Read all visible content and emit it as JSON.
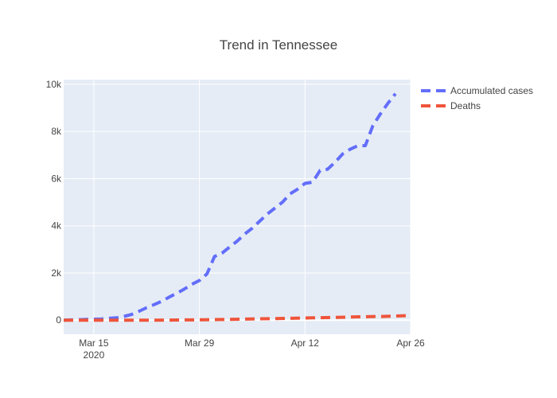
{
  "chart_data": {
    "type": "line",
    "title": "Trend in Tennessee",
    "xlabel": "",
    "ylabel": "",
    "x_axis": {
      "range": [
        "2020-03-11",
        "2020-04-26"
      ],
      "ticks": [
        {
          "date": "2020-03-15",
          "label": "Mar 15",
          "sublabel": "2020"
        },
        {
          "date": "2020-03-29",
          "label": "Mar 29",
          "sublabel": ""
        },
        {
          "date": "2020-04-12",
          "label": "Apr 12",
          "sublabel": ""
        },
        {
          "date": "2020-04-26",
          "label": "Apr 26",
          "sublabel": ""
        }
      ]
    },
    "y_axis": {
      "range": [
        -600,
        10200
      ],
      "ticks": [
        {
          "value": 0,
          "label": "0"
        },
        {
          "value": 2000,
          "label": "2k"
        },
        {
          "value": 4000,
          "label": "4k"
        },
        {
          "value": 6000,
          "label": "6k"
        },
        {
          "value": 8000,
          "label": "8k"
        },
        {
          "value": 10000,
          "label": "10k"
        }
      ]
    },
    "grid": true,
    "legend_position": "top-right",
    "series": [
      {
        "name": "Accumulated cases",
        "color": "#636efa",
        "dash": "dash",
        "points": [
          [
            "2020-03-11",
            0
          ],
          [
            "2020-03-12",
            10
          ],
          [
            "2020-03-13",
            20
          ],
          [
            "2020-03-14",
            30
          ],
          [
            "2020-03-15",
            40
          ],
          [
            "2020-03-16",
            50
          ],
          [
            "2020-03-17",
            80
          ],
          [
            "2020-03-18",
            100
          ],
          [
            "2020-03-19",
            160
          ],
          [
            "2020-03-20",
            240
          ],
          [
            "2020-03-21",
            380
          ],
          [
            "2020-03-22",
            530
          ],
          [
            "2020-03-23",
            660
          ],
          [
            "2020-03-24",
            800
          ],
          [
            "2020-03-25",
            980
          ],
          [
            "2020-03-26",
            1140
          ],
          [
            "2020-03-27",
            1320
          ],
          [
            "2020-03-28",
            1520
          ],
          [
            "2020-03-29",
            1680
          ],
          [
            "2020-03-30",
            1960
          ],
          [
            "2020-03-31",
            2700
          ],
          [
            "2020-04-01",
            2840
          ],
          [
            "2020-04-02",
            3100
          ],
          [
            "2020-04-03",
            3350
          ],
          [
            "2020-04-04",
            3650
          ],
          [
            "2020-04-05",
            3900
          ],
          [
            "2020-04-06",
            4200
          ],
          [
            "2020-04-07",
            4500
          ],
          [
            "2020-04-08",
            4750
          ],
          [
            "2020-04-09",
            5000
          ],
          [
            "2020-04-10",
            5350
          ],
          [
            "2020-04-11",
            5550
          ],
          [
            "2020-04-12",
            5800
          ],
          [
            "2020-04-13",
            5850
          ],
          [
            "2020-04-14",
            6350
          ],
          [
            "2020-04-15",
            6400
          ],
          [
            "2020-04-16",
            6700
          ],
          [
            "2020-04-17",
            7050
          ],
          [
            "2020-04-18",
            7250
          ],
          [
            "2020-04-19",
            7400
          ],
          [
            "2020-04-20",
            7400
          ],
          [
            "2020-04-21",
            8250
          ],
          [
            "2020-04-22",
            8750
          ],
          [
            "2020-04-23",
            9200
          ],
          [
            "2020-04-24",
            9600
          ]
        ]
      },
      {
        "name": "Deaths",
        "color": "#ef553b",
        "dash": "dash",
        "points": [
          [
            "2020-03-11",
            0
          ],
          [
            "2020-03-14",
            0
          ],
          [
            "2020-03-17",
            0
          ],
          [
            "2020-03-20",
            0
          ],
          [
            "2020-03-23",
            2
          ],
          [
            "2020-03-26",
            6
          ],
          [
            "2020-03-29",
            13
          ],
          [
            "2020-04-01",
            28
          ],
          [
            "2020-04-04",
            44
          ],
          [
            "2020-04-07",
            60
          ],
          [
            "2020-04-10",
            80
          ],
          [
            "2020-04-13",
            98
          ],
          [
            "2020-04-16",
            114
          ],
          [
            "2020-04-19",
            141
          ],
          [
            "2020-04-22",
            157
          ],
          [
            "2020-04-24",
            175
          ],
          [
            "2020-04-26",
            195
          ]
        ]
      }
    ]
  }
}
